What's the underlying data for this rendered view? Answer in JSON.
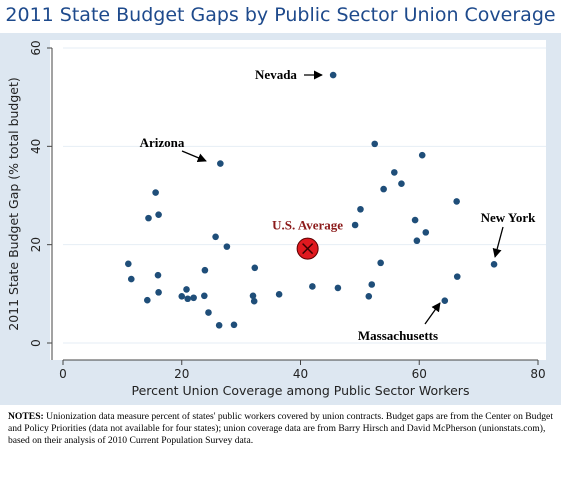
{
  "chart_data": {
    "type": "scatter",
    "title": "2011 State Budget Gaps by Public Sector Union Coverage",
    "xlabel": "Percent Union Coverage among Public Sector Workers",
    "ylabel": "2011 State Budget Gap (% total budget)",
    "xlim": [
      0,
      80
    ],
    "ylim": [
      0,
      60
    ],
    "xticks": [
      "0",
      "20",
      "40",
      "60",
      "80"
    ],
    "yticks": [
      "0",
      "20",
      "40",
      "60"
    ],
    "grid": "horizontal",
    "points": [
      {
        "x": 45.5,
        "y": 54.5
      },
      {
        "x": 26.5,
        "y": 36.5
      },
      {
        "x": 52.5,
        "y": 40.5
      },
      {
        "x": 60.5,
        "y": 38.2
      },
      {
        "x": 55.8,
        "y": 34.7
      },
      {
        "x": 57.0,
        "y": 32.4
      },
      {
        "x": 54.0,
        "y": 31.3
      },
      {
        "x": 66.3,
        "y": 28.8
      },
      {
        "x": 15.6,
        "y": 30.6
      },
      {
        "x": 14.4,
        "y": 25.4
      },
      {
        "x": 16.1,
        "y": 26.1
      },
      {
        "x": 50.1,
        "y": 27.2
      },
      {
        "x": 59.3,
        "y": 25.0
      },
      {
        "x": 49.2,
        "y": 24.0
      },
      {
        "x": 61.1,
        "y": 22.5
      },
      {
        "x": 59.6,
        "y": 20.8
      },
      {
        "x": 25.7,
        "y": 21.6
      },
      {
        "x": 27.6,
        "y": 19.6
      },
      {
        "x": 72.6,
        "y": 16.0
      },
      {
        "x": 11.0,
        "y": 16.1
      },
      {
        "x": 53.5,
        "y": 16.3
      },
      {
        "x": 32.3,
        "y": 15.3
      },
      {
        "x": 23.9,
        "y": 14.8
      },
      {
        "x": 16.0,
        "y": 13.8
      },
      {
        "x": 66.4,
        "y": 13.5
      },
      {
        "x": 11.5,
        "y": 13.0
      },
      {
        "x": 42.0,
        "y": 11.5
      },
      {
        "x": 46.3,
        "y": 11.2
      },
      {
        "x": 52.0,
        "y": 11.9
      },
      {
        "x": 20.8,
        "y": 10.9
      },
      {
        "x": 16.1,
        "y": 10.3
      },
      {
        "x": 36.4,
        "y": 9.9
      },
      {
        "x": 51.5,
        "y": 9.5
      },
      {
        "x": 20.0,
        "y": 9.5
      },
      {
        "x": 21.0,
        "y": 9.0
      },
      {
        "x": 22.0,
        "y": 9.2
      },
      {
        "x": 23.8,
        "y": 9.6
      },
      {
        "x": 32.0,
        "y": 9.6
      },
      {
        "x": 32.2,
        "y": 8.5
      },
      {
        "x": 14.2,
        "y": 8.7
      },
      {
        "x": 64.3,
        "y": 8.6
      },
      {
        "x": 24.5,
        "y": 6.2
      },
      {
        "x": 26.3,
        "y": 3.6
      },
      {
        "x": 28.8,
        "y": 3.7
      }
    ],
    "average": {
      "label": "U.S. Average",
      "x": 41.2,
      "y": 19.2,
      "color": "#e0191f"
    },
    "annotations": [
      {
        "label": "Nevada"
      },
      {
        "label": "Arizona"
      },
      {
        "label": "New York"
      },
      {
        "label": "Massachusetts"
      }
    ]
  },
  "notes": {
    "label": "NOTES:",
    "text": "Unionization data measure percent of states' public workers covered by union contracts. Budget gaps are from the Center on Budget and Policy Priorities (data not available for four states); union coverage data are from Barry Hirsch and David McPherson (unionstats.com), based on their analysis of 2010 Current Population Survey data."
  },
  "colors": {
    "title": "#1e4a8c",
    "panel": "#dde7f1",
    "plot": "#ffffff",
    "grid": "#e6eef5",
    "point": "#1f4e79",
    "average_label": "#8b1a1a"
  }
}
